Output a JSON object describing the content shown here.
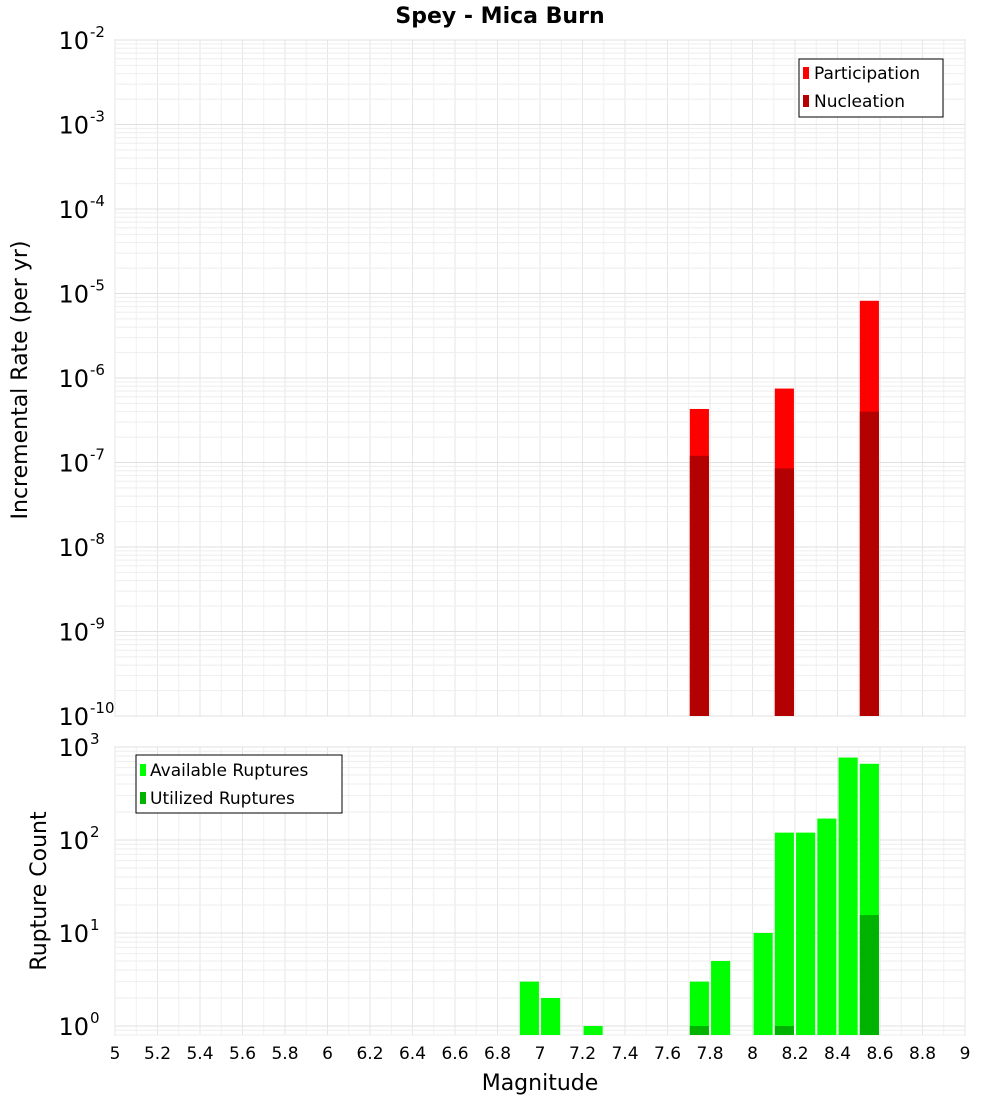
{
  "chart_data": [
    {
      "type": "bar",
      "title": "Spey - Mica Burn",
      "ylabel": "Incremental Rate (per yr)",
      "yscale": "log",
      "ylim": [
        1e-10,
        0.01
      ],
      "ytick_exponents": [
        "-10",
        "-9",
        "-8",
        "-7",
        "-6",
        "-5",
        "-4",
        "-3",
        "-2"
      ],
      "ytick_base": "10",
      "legend": {
        "position": "top-right",
        "entries": [
          "Participation",
          "Nucleation"
        ]
      },
      "colors": {
        "Participation": "#ff0000",
        "Nucleation": "#b30000"
      },
      "series": [
        {
          "name": "Participation",
          "x": [
            7.75,
            8.15,
            8.55
          ],
          "values": [
            4.3e-07,
            7.5e-07,
            8.2e-06
          ]
        },
        {
          "name": "Nucleation",
          "x": [
            7.75,
            8.15,
            8.55
          ],
          "values": [
            1.2e-07,
            8.5e-08,
            4e-07
          ]
        }
      ]
    },
    {
      "type": "bar",
      "ylabel": "Rupture Count",
      "yscale": "log",
      "ylim": [
        0.8,
        1000
      ],
      "ytick_exponents": [
        "0",
        "1",
        "2",
        "3"
      ],
      "ytick_base": "10",
      "legend": {
        "position": "top-left",
        "entries": [
          "Available Ruptures",
          "Utilized Ruptures"
        ]
      },
      "colors": {
        "Available Ruptures": "#00ff00",
        "Utilized Ruptures": "#00b300"
      },
      "series": [
        {
          "name": "Available Ruptures",
          "x": [
            6.95,
            7.05,
            7.25,
            7.75,
            7.85,
            8.05,
            8.15,
            8.25,
            8.35,
            8.45,
            8.55
          ],
          "values": [
            3,
            2,
            1,
            3,
            5,
            10,
            120,
            120,
            170,
            770,
            660
          ]
        },
        {
          "name": "Utilized Ruptures",
          "x": [
            7.75,
            8.15,
            8.55
          ],
          "values": [
            1,
            1,
            15.6
          ]
        }
      ]
    }
  ],
  "xaxis": {
    "label": "Magnitude",
    "xlim": [
      5,
      9
    ],
    "ticks": [
      "5",
      "5.2",
      "5.4",
      "5.6",
      "5.8",
      "6",
      "6.2",
      "6.4",
      "6.6",
      "6.8",
      "7",
      "7.2",
      "7.4",
      "7.6",
      "7.8",
      "8",
      "8.2",
      "8.4",
      "8.6",
      "8.8",
      "9"
    ],
    "bar_width": 0.09
  }
}
